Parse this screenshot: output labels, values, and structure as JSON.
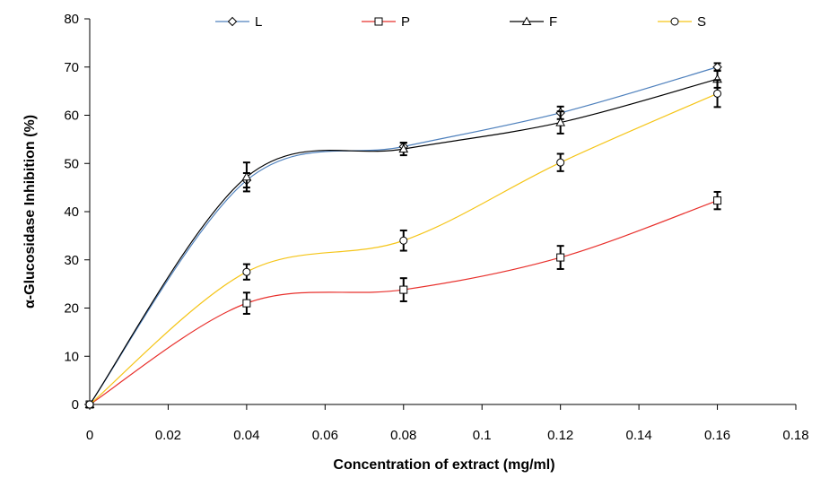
{
  "chart_data": {
    "type": "line",
    "title": "",
    "xlabel": "Concentration of extract (mg/ml)",
    "ylabel": "α-Glucosidase Inhibition (%)",
    "xlim": [
      0,
      0.18
    ],
    "ylim": [
      0,
      80
    ],
    "x_ticks": [
      0,
      0.02,
      0.04,
      0.06,
      0.08,
      0.1,
      0.12,
      0.14,
      0.16,
      0.18
    ],
    "x_tick_labels": [
      "0",
      "0.02",
      "0.04",
      "0.06",
      "0.08",
      "0.1",
      "0.12",
      "0.14",
      "0.16",
      "0.18"
    ],
    "y_ticks": [
      0,
      10,
      20,
      30,
      40,
      50,
      60,
      70,
      80
    ],
    "y_tick_labels": [
      "0",
      "10",
      "20",
      "30",
      "40",
      "50",
      "60",
      "70",
      "80"
    ],
    "grid": false,
    "legend_position": "top",
    "x": [
      0,
      0.04,
      0.08,
      0.12,
      0.16
    ],
    "series": [
      {
        "name": "L",
        "marker": "diamond",
        "color": "#4f81bd",
        "values": [
          0,
          46.5,
          53.5,
          60.5,
          70
        ],
        "errors": [
          0,
          1.5,
          0.8,
          1.3,
          0.8
        ]
      },
      {
        "name": "P",
        "marker": "square",
        "color": "#e8302c",
        "values": [
          0,
          21,
          23.8,
          30.5,
          42.3
        ],
        "errors": [
          0,
          2.2,
          2.4,
          2.4,
          1.8
        ]
      },
      {
        "name": "F",
        "marker": "triangle",
        "color": "#000000",
        "values": [
          0,
          47.2,
          53,
          58.5,
          67.5
        ],
        "errors": [
          0,
          3,
          1.3,
          2.3,
          1.8
        ]
      },
      {
        "name": "S",
        "marker": "circle",
        "color": "#f5c518",
        "values": [
          0,
          27.5,
          34,
          50.2,
          64.5
        ],
        "errors": [
          0,
          1.6,
          2.1,
          1.8,
          2.8
        ]
      }
    ]
  }
}
